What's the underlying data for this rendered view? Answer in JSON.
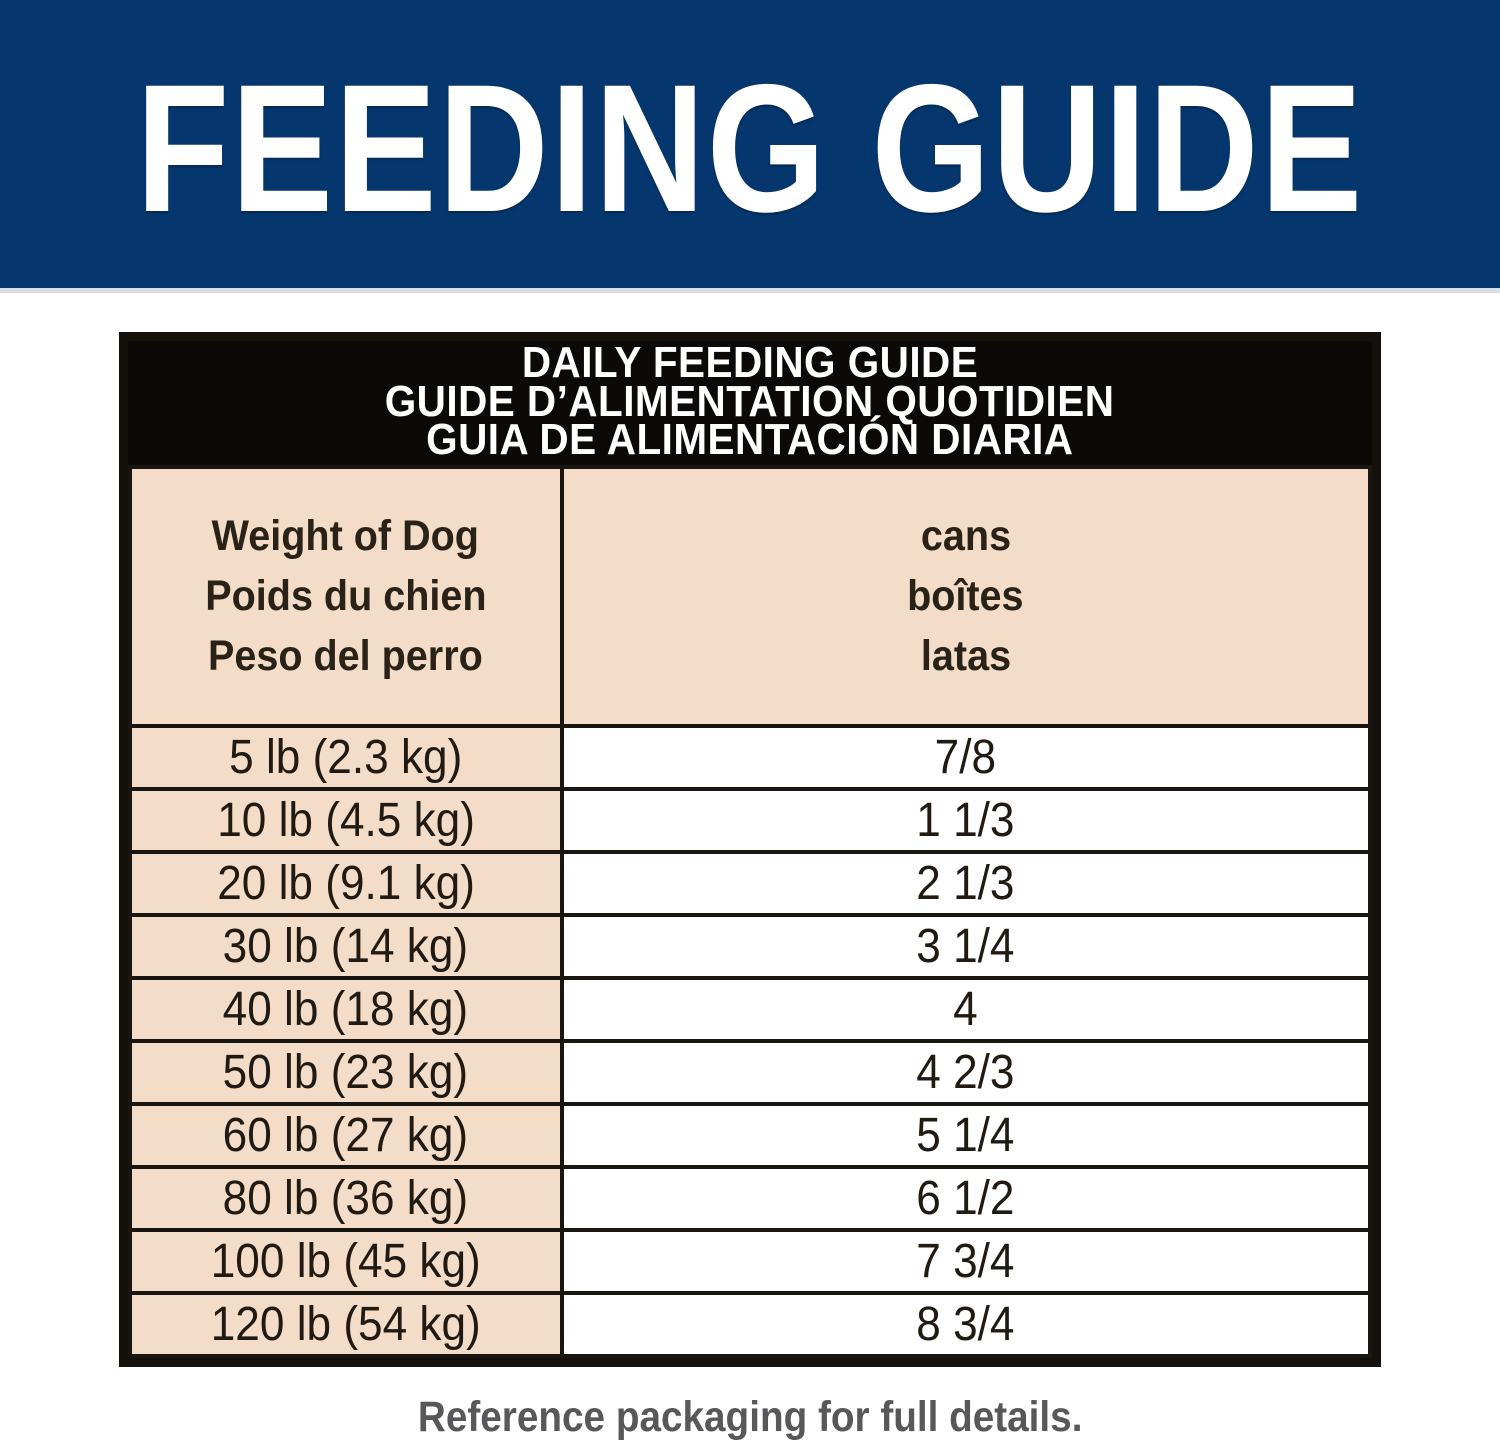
{
  "banner": {
    "title": "FEEDING GUIDE",
    "background_color": "#05376e",
    "text_color": "#ffffff"
  },
  "table": {
    "title_lines": [
      "DAILY FEEDING GUIDE",
      "GUIDE D’ALIMENTATION QUOTIDIEN",
      "GUIA DE ALIMENTACIÓN DIARIA"
    ],
    "columns": [
      {
        "header_lines": [
          "Weight of Dog",
          "Poids du chien",
          "Peso del perro"
        ]
      },
      {
        "header_lines": [
          "cans",
          "boîtes",
          "latas"
        ]
      }
    ],
    "rows": [
      {
        "weight": "5 lb (2.3 kg)",
        "cans": "7/8"
      },
      {
        "weight": "10 lb (4.5 kg)",
        "cans": "1 1/3"
      },
      {
        "weight": "20 lb (9.1 kg)",
        "cans": "2 1/3"
      },
      {
        "weight": "30 lb (14 kg)",
        "cans": "3 1/4"
      },
      {
        "weight": "40 lb (18 kg)",
        "cans": "4"
      },
      {
        "weight": "50 lb (23 kg)",
        "cans": "4 2/3"
      },
      {
        "weight": "60 lb (27 kg)",
        "cans": "5 1/4"
      },
      {
        "weight": "80 lb (36 kg)",
        "cans": "6 1/2"
      },
      {
        "weight": "100 lb (45 kg)",
        "cans": "7 3/4"
      },
      {
        "weight": "120 lb (54 kg)",
        "cans": "8 3/4"
      }
    ],
    "colors": {
      "title_band_background": "#0b0a08",
      "header_cell_background": "#f3ddc8",
      "weight_cell_background": "#f3ddc8",
      "cans_cell_background": "#ffffff",
      "border": "#191611",
      "text": "#201a13"
    }
  },
  "footer": {
    "note": "Reference packaging for full details.",
    "text_color": "#58585a"
  }
}
